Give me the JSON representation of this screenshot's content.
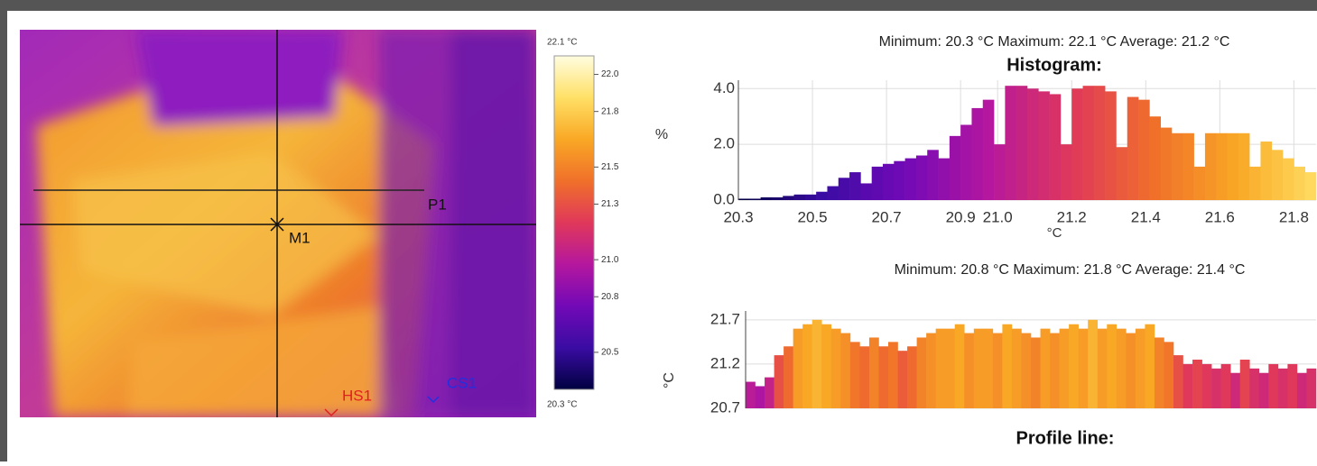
{
  "thermal_image": {
    "markers": {
      "profile": "P1",
      "measure": "M1",
      "hot_spot": "HS1",
      "cold_spot": "CS1"
    },
    "colorbar": {
      "max": {
        "value": 22.1,
        "label": "22.1 °C"
      },
      "min": {
        "value": 20.3,
        "label": "20.3 °C"
      },
      "ticks": [
        {
          "value": 22.0,
          "label": "22.0"
        },
        21.8,
        21.5,
        21.3,
        {
          "value": 21.0,
          "label": "21.0"
        },
        20.8,
        20.5
      ],
      "colormap": [
        "#000040",
        "#3a0ca3",
        "#7209b7",
        "#b5179e",
        "#e0385a",
        "#f0702a",
        "#f9a825",
        "#ffe066",
        "#fffde0"
      ]
    }
  },
  "chart_data": [
    {
      "type": "histogram",
      "title": "Histogram:",
      "subtitle": "Minimum: 20.3 °C Maximum: 22.1 °C Average: 21.2 °C",
      "x_label": "°C",
      "y_label": "%",
      "bins": [
        20.3,
        20.33,
        20.36,
        20.39,
        20.42,
        20.45,
        20.48,
        20.51,
        20.54,
        20.57,
        20.6,
        20.63,
        20.66,
        20.69,
        20.72,
        20.75,
        20.78,
        20.81,
        20.84,
        20.87,
        20.9,
        20.93,
        20.96,
        20.99,
        21.02,
        21.05,
        21.08,
        21.11,
        21.14,
        21.17,
        21.2,
        21.23,
        21.26,
        21.29,
        21.32,
        21.35,
        21.38,
        21.41,
        21.44,
        21.47,
        21.5,
        21.53,
        21.56,
        21.59,
        21.62,
        21.65,
        21.68,
        21.71,
        21.74,
        21.77,
        21.8,
        21.83,
        21.86
      ],
      "values": [
        0.05,
        0.05,
        0.1,
        0.1,
        0.15,
        0.2,
        0.2,
        0.3,
        0.5,
        0.8,
        1.0,
        0.6,
        1.2,
        1.3,
        1.4,
        1.5,
        1.6,
        1.8,
        1.5,
        2.3,
        2.7,
        3.3,
        3.6,
        2.0,
        4.1,
        4.1,
        4.0,
        3.9,
        3.8,
        2.0,
        4.0,
        4.1,
        4.1,
        3.9,
        1.9,
        3.7,
        3.6,
        3.0,
        2.6,
        2.4,
        2.4,
        1.2,
        2.4,
        2.4,
        2.4,
        2.4,
        1.2,
        2.1,
        1.8,
        1.5,
        1.2,
        1.0
      ],
      "xlim": [
        20.3,
        21.86
      ],
      "ylim": [
        0,
        4.3
      ],
      "xticks": [
        20.3,
        20.5,
        20.7,
        20.9,
        {
          "value": 21.0,
          "label": "21.0"
        },
        21.2,
        21.4,
        21.6,
        21.8
      ],
      "yticks": [
        {
          "value": 0,
          "label": "0.0"
        },
        {
          "value": 2,
          "label": "2.0"
        },
        {
          "value": 4,
          "label": "4.0"
        }
      ],
      "grid": true
    },
    {
      "type": "profile",
      "title": "Profile line:",
      "subtitle": "Minimum: 20.8 °C Maximum: 21.8 °C Average: 21.4 °C",
      "y_label": "°C",
      "values": [
        21.0,
        20.95,
        21.05,
        21.3,
        21.4,
        21.6,
        21.65,
        21.7,
        21.65,
        21.6,
        21.55,
        21.45,
        21.4,
        21.5,
        21.4,
        21.45,
        21.35,
        21.4,
        21.5,
        21.55,
        21.6,
        21.6,
        21.65,
        21.55,
        21.6,
        21.6,
        21.55,
        21.65,
        21.6,
        21.55,
        21.5,
        21.6,
        21.55,
        21.6,
        21.65,
        21.6,
        21.7,
        21.6,
        21.65,
        21.6,
        21.55,
        21.6,
        21.65,
        21.5,
        21.45,
        21.3,
        21.2,
        21.25,
        21.2,
        21.15,
        21.2,
        21.1,
        21.25,
        21.15,
        21.1,
        21.2,
        21.15,
        21.2,
        21.1,
        21.15
      ],
      "ylim": [
        20.7,
        21.8
      ],
      "yticks": [
        20.7,
        21.2,
        21.7
      ],
      "grid": true
    }
  ]
}
